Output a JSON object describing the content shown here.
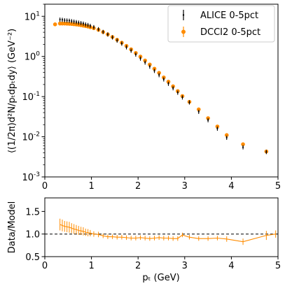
{
  "chart_data": [
    {
      "type": "scatter",
      "panel": "spectrum",
      "ylabel": "⟨(1/2π)d²N/pₜdpₜdy⟩ (GeV⁻²)",
      "xlim": [
        0,
        5
      ],
      "ylim": [
        0.001,
        20
      ],
      "yscale": "log",
      "xticks": [
        "0",
        "1",
        "2",
        "3",
        "4",
        "5"
      ],
      "yticks": [
        {
          "value": 0.001,
          "base": "10",
          "exp": "-3"
        },
        {
          "value": 0.01,
          "base": "10",
          "exp": "-2"
        },
        {
          "value": 0.1,
          "base": "10",
          "exp": "-1"
        },
        {
          "value": 1,
          "base": "10",
          "exp": "0"
        },
        {
          "value": 10,
          "base": "10",
          "exp": "1"
        }
      ],
      "legend": {
        "position": "top-right",
        "entries": [
          "ALICE 0-5pct",
          "DCCI2 0-5pct"
        ]
      },
      "series": [
        {
          "name": "ALICE 0-5pct",
          "color": "#000000",
          "marker": "errorbar",
          "x": [
            0.325,
            0.375,
            0.425,
            0.475,
            0.525,
            0.575,
            0.625,
            0.675,
            0.725,
            0.775,
            0.825,
            0.875,
            0.925,
            0.975,
            1.05,
            1.15,
            1.25,
            1.35,
            1.45,
            1.55,
            1.65,
            1.75,
            1.85,
            1.95,
            2.05,
            2.15,
            2.25,
            2.35,
            2.45,
            2.55,
            2.65,
            2.75,
            2.85,
            2.95,
            3.1,
            3.3,
            3.5,
            3.7,
            3.9,
            4.25,
            4.75
          ],
          "y": [
            8.3,
            8.2,
            8.0,
            7.9,
            7.8,
            7.6,
            7.4,
            7.2,
            7.0,
            6.8,
            6.6,
            6.3,
            6.1,
            5.8,
            5.4,
            4.8,
            4.1,
            3.55,
            3.0,
            2.5,
            2.1,
            1.7,
            1.4,
            1.12,
            0.89,
            0.71,
            0.56,
            0.44,
            0.345,
            0.27,
            0.21,
            0.163,
            0.126,
            0.096,
            0.072,
            0.042,
            0.026,
            0.016,
            0.0095,
            0.0055,
            0.0042
          ],
          "yerr_frac": 0.12
        },
        {
          "name": "DCCI2 0-5pct",
          "color": "#ff8c00",
          "marker": "circle",
          "x": [
            0.22,
            0.325,
            0.375,
            0.425,
            0.475,
            0.525,
            0.575,
            0.625,
            0.675,
            0.725,
            0.775,
            0.825,
            0.875,
            0.925,
            0.975,
            1.05,
            1.15,
            1.25,
            1.35,
            1.45,
            1.55,
            1.65,
            1.75,
            1.85,
            1.95,
            2.05,
            2.15,
            2.25,
            2.35,
            2.45,
            2.55,
            2.65,
            2.75,
            2.85,
            2.95,
            3.1,
            3.3,
            3.5,
            3.7,
            3.9,
            4.25,
            4.75
          ],
          "y": [
            6.3,
            6.6,
            6.6,
            6.6,
            6.55,
            6.5,
            6.45,
            6.35,
            6.25,
            6.15,
            6.0,
            5.85,
            5.7,
            5.55,
            5.35,
            5.05,
            4.6,
            4.05,
            3.55,
            3.05,
            2.6,
            2.2,
            1.83,
            1.5,
            1.22,
            0.99,
            0.79,
            0.63,
            0.495,
            0.39,
            0.3,
            0.235,
            0.18,
            0.137,
            0.103,
            0.074,
            0.048,
            0.029,
            0.018,
            0.011,
            0.0065,
            0.0043
          ]
        }
      ]
    },
    {
      "type": "line",
      "panel": "ratio",
      "xlabel": "pₜ (GeV)",
      "ylabel": "Data/Model",
      "xlim": [
        0,
        5
      ],
      "ylim": [
        0.5,
        1.8
      ],
      "xticks": [
        "0",
        "1",
        "2",
        "3",
        "4",
        "5"
      ],
      "yticks": [
        {
          "value": 0.5,
          "label": "0.5"
        },
        {
          "value": 1.0,
          "label": "1.0"
        },
        {
          "value": 1.5,
          "label": "1.5"
        }
      ],
      "reference_line": 1.0,
      "series": [
        {
          "color": "#ff8c00",
          "x": [
            0.325,
            0.375,
            0.425,
            0.475,
            0.525,
            0.575,
            0.625,
            0.675,
            0.725,
            0.775,
            0.825,
            0.875,
            0.925,
            0.975,
            1.05,
            1.15,
            1.25,
            1.35,
            1.45,
            1.55,
            1.65,
            1.75,
            1.85,
            1.95,
            2.05,
            2.15,
            2.25,
            2.35,
            2.45,
            2.55,
            2.65,
            2.75,
            2.85,
            2.95,
            3.1,
            3.3,
            3.5,
            3.7,
            3.9,
            4.25,
            4.75,
            4.95
          ],
          "y": [
            1.21,
            1.19,
            1.17,
            1.16,
            1.15,
            1.13,
            1.11,
            1.1,
            1.08,
            1.07,
            1.06,
            1.04,
            1.03,
            1.02,
            1.0,
            0.99,
            0.96,
            0.94,
            0.94,
            0.93,
            0.93,
            0.92,
            0.91,
            0.91,
            0.92,
            0.91,
            0.9,
            0.91,
            0.92,
            0.91,
            0.91,
            0.9,
            0.9,
            0.98,
            0.93,
            0.9,
            0.9,
            0.91,
            0.89,
            0.83,
            0.97,
            1.0
          ],
          "yerr": [
            0.13,
            0.13,
            0.12,
            0.12,
            0.12,
            0.11,
            0.11,
            0.1,
            0.1,
            0.09,
            0.09,
            0.08,
            0.08,
            0.07,
            0.06,
            0.06,
            0.05,
            0.05,
            0.05,
            0.05,
            0.05,
            0.05,
            0.05,
            0.05,
            0.05,
            0.05,
            0.05,
            0.05,
            0.05,
            0.05,
            0.05,
            0.05,
            0.05,
            0.05,
            0.05,
            0.05,
            0.05,
            0.05,
            0.06,
            0.07,
            0.1,
            0.08
          ]
        }
      ]
    }
  ]
}
